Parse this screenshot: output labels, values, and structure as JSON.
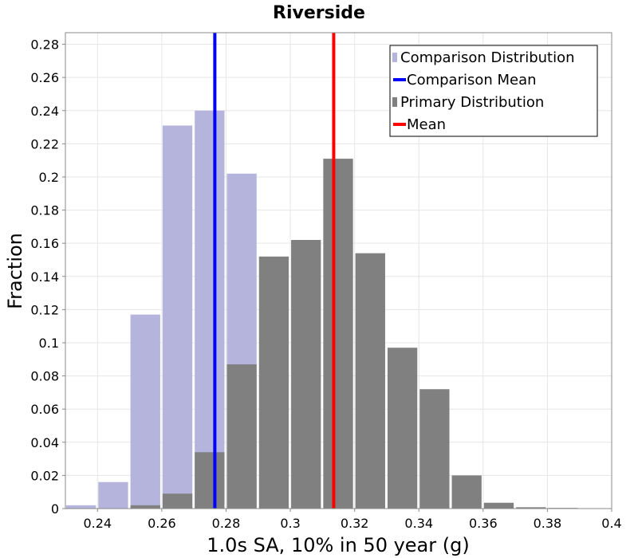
{
  "chart_data": {
    "type": "bar",
    "title": "Riverside",
    "xlabel": "1.0s SA, 10% in 50 year (g)",
    "ylabel": "Fraction",
    "xlim": [
      0.23,
      0.4
    ],
    "ylim": [
      0,
      0.287
    ],
    "xticks": [
      "0.24",
      "0.26",
      "0.28",
      "0.3",
      "0.32",
      "0.34",
      "0.36",
      "0.38",
      "0.4"
    ],
    "yticks": [
      "0",
      "0.02",
      "0.04",
      "0.06",
      "0.08",
      "0.1",
      "0.12",
      "0.14",
      "0.16",
      "0.18",
      "0.2",
      "0.22",
      "0.24",
      "0.26",
      "0.28"
    ],
    "bin_width": 0.01,
    "grid": true,
    "legend_position": "top-right",
    "series": [
      {
        "name": "Comparison Distribution",
        "kind": "bar",
        "color": "#b4b4dc",
        "bins": [
          0.23,
          0.24,
          0.25,
          0.26,
          0.27,
          0.28
        ],
        "values": [
          0.002,
          0.016,
          0.117,
          0.231,
          0.24,
          0.202
        ]
      },
      {
        "name": "Primary Distribution",
        "kind": "bar",
        "color": "#808080",
        "bins": [
          0.25,
          0.26,
          0.27,
          0.28,
          0.29,
          0.3,
          0.31,
          0.32,
          0.33,
          0.34,
          0.35,
          0.36,
          0.37,
          0.38
        ],
        "values": [
          0.002,
          0.009,
          0.034,
          0.087,
          0.152,
          0.162,
          0.211,
          0.154,
          0.097,
          0.072,
          0.02,
          0.0035,
          0.0008,
          0.0004
        ]
      },
      {
        "name": "Comparison Mean",
        "kind": "vline",
        "color": "#0000ff",
        "x": 0.2765
      },
      {
        "name": "Mean",
        "kind": "vline",
        "color": "#ff0000",
        "x": 0.3135
      }
    ],
    "legend_order": [
      "Comparison Distribution",
      "Comparison Mean",
      "Primary Distribution",
      "Mean"
    ]
  }
}
